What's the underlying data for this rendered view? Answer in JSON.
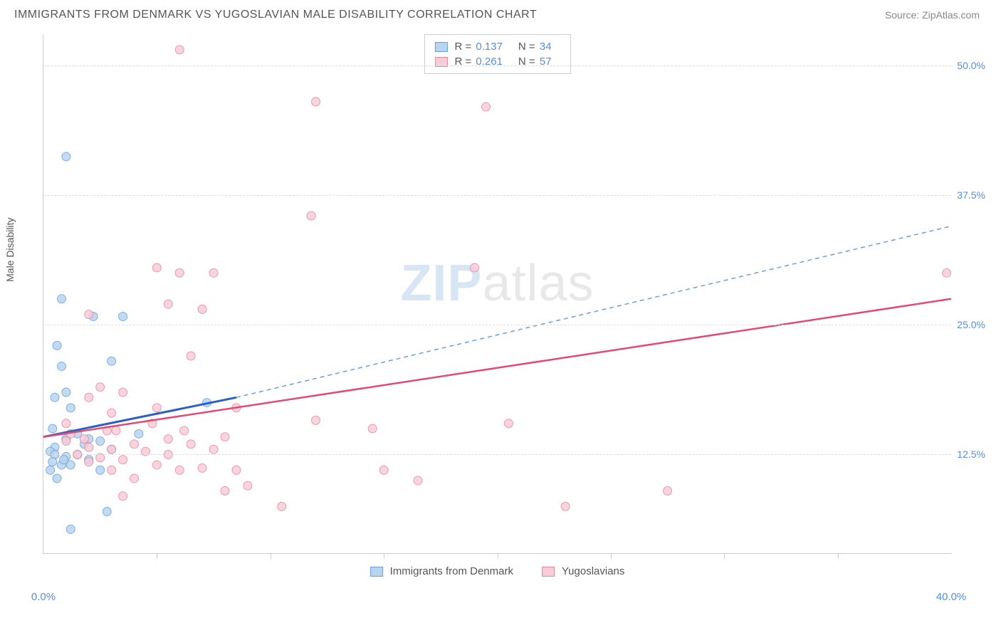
{
  "title": "IMMIGRANTS FROM DENMARK VS YUGOSLAVIAN MALE DISABILITY CORRELATION CHART",
  "source": "Source: ZipAtlas.com",
  "y_axis_label": "Male Disability",
  "watermark": {
    "part1": "ZIP",
    "part2": "atlas"
  },
  "chart": {
    "type": "scatter",
    "xlim": [
      0,
      40
    ],
    "ylim": [
      3,
      53
    ],
    "x_ticks": [
      0,
      40
    ],
    "x_tick_labels": [
      "0.0%",
      "40.0%"
    ],
    "x_minor_ticks": [
      5,
      10,
      15,
      20,
      25,
      30,
      35
    ],
    "y_ticks": [
      12.5,
      25.0,
      37.5,
      50.0
    ],
    "y_tick_labels": [
      "12.5%",
      "25.0%",
      "37.5%",
      "50.0%"
    ],
    "grid_color": "#dddddd",
    "background_color": "#ffffff",
    "series": [
      {
        "name": "Immigrants from Denmark",
        "color_fill": "#b8d4f0",
        "color_stroke": "#6a9fd8",
        "marker_radius": 6,
        "R": "0.137",
        "N": "34",
        "trend": {
          "x1": 0,
          "y1": 14.2,
          "x2": 8.5,
          "y2": 18.0,
          "solid_color": "#2960c4",
          "solid_width": 3,
          "dash_x2": 40,
          "dash_y2": 34.5,
          "dash_color": "#6a9fd8"
        },
        "points": [
          [
            1.0,
            41.2
          ],
          [
            0.8,
            27.5
          ],
          [
            2.2,
            25.8
          ],
          [
            3.5,
            25.8
          ],
          [
            0.6,
            23.0
          ],
          [
            3.0,
            21.5
          ],
          [
            0.8,
            21.0
          ],
          [
            0.5,
            18.0
          ],
          [
            1.0,
            18.5
          ],
          [
            1.2,
            17.0
          ],
          [
            7.2,
            17.5
          ],
          [
            0.4,
            15.0
          ],
          [
            1.5,
            14.5
          ],
          [
            2.0,
            14.0
          ],
          [
            1.0,
            14.0
          ],
          [
            0.5,
            13.2
          ],
          [
            2.5,
            13.8
          ],
          [
            0.3,
            12.8
          ],
          [
            0.5,
            12.5
          ],
          [
            1.0,
            12.3
          ],
          [
            1.5,
            12.5
          ],
          [
            2.0,
            12.0
          ],
          [
            0.4,
            11.8
          ],
          [
            0.8,
            11.5
          ],
          [
            1.2,
            11.5
          ],
          [
            3.0,
            13.0
          ],
          [
            0.3,
            11.0
          ],
          [
            2.5,
            11.0
          ],
          [
            2.8,
            7.0
          ],
          [
            1.2,
            5.3
          ],
          [
            0.6,
            10.2
          ],
          [
            4.2,
            14.5
          ],
          [
            1.8,
            13.5
          ],
          [
            0.9,
            12.0
          ]
        ]
      },
      {
        "name": "Yugoslavians",
        "color_fill": "#f7cdd8",
        "color_stroke": "#e6889f",
        "marker_radius": 6,
        "R": "0.261",
        "N": "57",
        "trend": {
          "x1": 0,
          "y1": 14.2,
          "x2": 40,
          "y2": 27.5,
          "solid_color": "#e24a76",
          "solid_width": 2.5
        },
        "points": [
          [
            6.0,
            51.5
          ],
          [
            12.0,
            46.5
          ],
          [
            19.5,
            46.0
          ],
          [
            11.8,
            35.5
          ],
          [
            39.8,
            30.0
          ],
          [
            19.0,
            30.5
          ],
          [
            5.0,
            30.5
          ],
          [
            6.0,
            30.0
          ],
          [
            7.5,
            30.0
          ],
          [
            5.5,
            27.0
          ],
          [
            7.0,
            26.5
          ],
          [
            2.0,
            26.0
          ],
          [
            6.5,
            22.0
          ],
          [
            2.5,
            19.0
          ],
          [
            3.5,
            18.5
          ],
          [
            2.0,
            18.0
          ],
          [
            12.0,
            15.8
          ],
          [
            20.5,
            15.5
          ],
          [
            5.0,
            17.0
          ],
          [
            3.0,
            16.5
          ],
          [
            8.5,
            17.0
          ],
          [
            4.0,
            13.5
          ],
          [
            5.5,
            14.0
          ],
          [
            6.5,
            13.5
          ],
          [
            8.0,
            14.2
          ],
          [
            3.0,
            13.0
          ],
          [
            2.0,
            13.2
          ],
          [
            4.5,
            12.8
          ],
          [
            1.0,
            13.8
          ],
          [
            2.5,
            12.2
          ],
          [
            3.5,
            12.0
          ],
          [
            1.5,
            12.5
          ],
          [
            2.0,
            11.8
          ],
          [
            5.0,
            11.5
          ],
          [
            7.0,
            11.2
          ],
          [
            3.0,
            11.0
          ],
          [
            4.0,
            10.2
          ],
          [
            6.0,
            11.0
          ],
          [
            8.5,
            11.0
          ],
          [
            8.0,
            9.0
          ],
          [
            9.0,
            9.5
          ],
          [
            3.5,
            8.5
          ],
          [
            10.5,
            7.5
          ],
          [
            15.0,
            11.0
          ],
          [
            16.5,
            10.0
          ],
          [
            14.5,
            15.0
          ],
          [
            27.5,
            9.0
          ],
          [
            23.0,
            7.5
          ],
          [
            1.2,
            14.5
          ],
          [
            7.5,
            13.0
          ],
          [
            2.8,
            14.8
          ],
          [
            1.8,
            14.0
          ],
          [
            1.0,
            15.5
          ],
          [
            4.8,
            15.5
          ],
          [
            6.2,
            14.8
          ],
          [
            5.5,
            12.5
          ],
          [
            3.2,
            14.8
          ]
        ]
      }
    ]
  },
  "stats_labels": {
    "R": "R =",
    "N": "N ="
  },
  "legend": {
    "items": [
      {
        "label": "Immigrants from Denmark",
        "fill": "#b8d4f0",
        "stroke": "#6a9fd8"
      },
      {
        "label": "Yugoslavians",
        "fill": "#f7cdd8",
        "stroke": "#e6889f"
      }
    ]
  }
}
